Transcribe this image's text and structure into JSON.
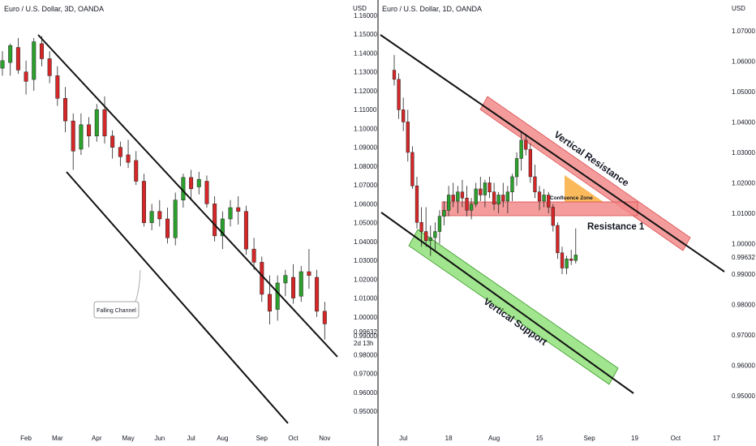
{
  "colors": {
    "up": "#2ca02c",
    "down": "#d62728",
    "line": "#111111",
    "resistance_fill": "#f28b8b",
    "support_fill": "#90e07a",
    "confluence_fill": "#f9b24a",
    "divider": "#333333"
  },
  "chart_data": [
    {
      "type": "candlestick",
      "title": "Euro / U.S. Dollar, 3D, OANDA",
      "price_axis_label": "USD",
      "yticks": [
        "1.16000",
        "1.15000",
        "1.14000",
        "1.13000",
        "1.12000",
        "1.11000",
        "1.10000",
        "1.09000",
        "1.08000",
        "1.07000",
        "1.06000",
        "1.05000",
        "1.04000",
        "1.03000",
        "1.02000",
        "1.01000",
        "1.00000",
        "0.99000",
        "0.98000",
        "0.97000",
        "0.96000",
        "0.95000"
      ],
      "ytick_values": [
        1.16,
        1.15,
        1.14,
        1.13,
        1.12,
        1.11,
        1.1,
        1.09,
        1.08,
        1.07,
        1.06,
        1.05,
        1.04,
        1.03,
        1.02,
        1.01,
        1.0,
        0.99,
        0.98,
        0.97,
        0.96,
        0.95
      ],
      "ylim": [
        0.95,
        1.16
      ],
      "xticks": [
        "Feb",
        "Mar",
        "Apr",
        "May",
        "Jun",
        "Jul",
        "Aug",
        "Sep",
        "Oct",
        "Nov"
      ],
      "xtick_index": [
        3,
        7,
        12,
        16,
        20,
        24,
        28,
        33,
        37,
        41
      ],
      "xlim": [
        0,
        42
      ],
      "last_price": "0.99632",
      "countdown": "2d 13h",
      "candles": [
        {
          "i": 0,
          "o": 1.132,
          "h": 1.141,
          "l": 1.128,
          "c": 1.136
        },
        {
          "i": 1,
          "o": 1.135,
          "h": 1.145,
          "l": 1.128,
          "c": 1.144
        },
        {
          "i": 2,
          "o": 1.143,
          "h": 1.148,
          "l": 1.129,
          "c": 1.131
        },
        {
          "i": 3,
          "o": 1.13,
          "h": 1.136,
          "l": 1.118,
          "c": 1.125
        },
        {
          "i": 4,
          "o": 1.126,
          "h": 1.148,
          "l": 1.12,
          "c": 1.146
        },
        {
          "i": 5,
          "o": 1.145,
          "h": 1.149,
          "l": 1.133,
          "c": 1.137
        },
        {
          "i": 6,
          "o": 1.137,
          "h": 1.141,
          "l": 1.124,
          "c": 1.128
        },
        {
          "i": 7,
          "o": 1.128,
          "h": 1.133,
          "l": 1.112,
          "c": 1.116
        },
        {
          "i": 8,
          "o": 1.116,
          "h": 1.122,
          "l": 1.098,
          "c": 1.104
        },
        {
          "i": 9,
          "o": 1.104,
          "h": 1.108,
          "l": 1.078,
          "c": 1.088
        },
        {
          "i": 10,
          "o": 1.089,
          "h": 1.108,
          "l": 1.086,
          "c": 1.102
        },
        {
          "i": 11,
          "o": 1.102,
          "h": 1.106,
          "l": 1.09,
          "c": 1.096
        },
        {
          "i": 12,
          "o": 1.096,
          "h": 1.113,
          "l": 1.093,
          "c": 1.11
        },
        {
          "i": 13,
          "o": 1.11,
          "h": 1.117,
          "l": 1.092,
          "c": 1.096
        },
        {
          "i": 14,
          "o": 1.096,
          "h": 1.099,
          "l": 1.084,
          "c": 1.09
        },
        {
          "i": 15,
          "o": 1.09,
          "h": 1.093,
          "l": 1.08,
          "c": 1.085
        },
        {
          "i": 16,
          "o": 1.086,
          "h": 1.094,
          "l": 1.079,
          "c": 1.082
        },
        {
          "i": 17,
          "o": 1.083,
          "h": 1.088,
          "l": 1.07,
          "c": 1.072
        },
        {
          "i": 18,
          "o": 1.072,
          "h": 1.076,
          "l": 1.048,
          "c": 1.05
        },
        {
          "i": 19,
          "o": 1.05,
          "h": 1.06,
          "l": 1.046,
          "c": 1.056
        },
        {
          "i": 20,
          "o": 1.056,
          "h": 1.062,
          "l": 1.048,
          "c": 1.052
        },
        {
          "i": 21,
          "o": 1.052,
          "h": 1.058,
          "l": 1.039,
          "c": 1.042
        },
        {
          "i": 22,
          "o": 1.042,
          "h": 1.066,
          "l": 1.038,
          "c": 1.062
        },
        {
          "i": 23,
          "o": 1.062,
          "h": 1.076,
          "l": 1.058,
          "c": 1.074
        },
        {
          "i": 24,
          "o": 1.074,
          "h": 1.078,
          "l": 1.062,
          "c": 1.068
        },
        {
          "i": 25,
          "o": 1.069,
          "h": 1.077,
          "l": 1.065,
          "c": 1.073
        },
        {
          "i": 26,
          "o": 1.072,
          "h": 1.075,
          "l": 1.058,
          "c": 1.06
        },
        {
          "i": 27,
          "o": 1.06,
          "h": 1.064,
          "l": 1.04,
          "c": 1.043
        },
        {
          "i": 28,
          "o": 1.043,
          "h": 1.056,
          "l": 1.036,
          "c": 1.052
        },
        {
          "i": 29,
          "o": 1.052,
          "h": 1.062,
          "l": 1.048,
          "c": 1.058
        },
        {
          "i": 30,
          "o": 1.058,
          "h": 1.064,
          "l": 1.049,
          "c": 1.056
        },
        {
          "i": 31,
          "o": 1.056,
          "h": 1.059,
          "l": 1.033,
          "c": 1.036
        },
        {
          "i": 32,
          "o": 1.036,
          "h": 1.042,
          "l": 1.025,
          "c": 1.029
        },
        {
          "i": 33,
          "o": 1.029,
          "h": 1.032,
          "l": 1.008,
          "c": 1.012
        },
        {
          "i": 34,
          "o": 1.012,
          "h": 1.022,
          "l": 0.996,
          "c": 1.003
        },
        {
          "i": 35,
          "o": 1.004,
          "h": 1.022,
          "l": 0.998,
          "c": 1.018
        },
        {
          "i": 36,
          "o": 1.018,
          "h": 1.025,
          "l": 1.011,
          "c": 1.022
        },
        {
          "i": 37,
          "o": 1.021,
          "h": 1.028,
          "l": 1.007,
          "c": 1.01
        },
        {
          "i": 38,
          "o": 1.011,
          "h": 1.027,
          "l": 1.008,
          "c": 1.024
        },
        {
          "i": 39,
          "o": 1.024,
          "h": 1.036,
          "l": 1.015,
          "c": 1.022
        },
        {
          "i": 40,
          "o": 1.021,
          "h": 1.025,
          "l": 1.0,
          "c": 1.003
        },
        {
          "i": 41,
          "o": 1.003,
          "h": 1.008,
          "l": 0.988,
          "c": 0.9963
        }
      ],
      "annotations": {
        "callout_text": "Falling Channel"
      }
    },
    {
      "type": "candlestick",
      "title": "Euro / U.S. Dollar, 1D, OANDA",
      "price_axis_label": "USD",
      "yticks": [
        "1.07000",
        "1.06000",
        "1.05000",
        "1.04000",
        "1.03000",
        "1.02000",
        "1.01000",
        "1.00000",
        "0.99000",
        "0.98000",
        "0.97000",
        "0.96000",
        "0.95000"
      ],
      "ytick_values": [
        1.07,
        1.06,
        1.05,
        1.04,
        1.03,
        1.02,
        1.01,
        1.0,
        0.99,
        0.98,
        0.97,
        0.96,
        0.95
      ],
      "ylim": [
        0.945,
        1.075
      ],
      "xticks": [
        "Jul",
        "18",
        "Aug",
        "15",
        "Sep",
        "19",
        "Oct",
        "17"
      ],
      "xtick_index": [
        2,
        12,
        22,
        32,
        43,
        53,
        62,
        71
      ],
      "xlim": [
        0,
        74
      ],
      "last_price": "0.99632",
      "annotations": {
        "vertical_resistance_label": "Vertical Resistance",
        "vertical_support_label": "Vertical Support",
        "resistance1_label": "Resistance 1",
        "confluence_label": "Confluence Zone",
        "resistance1_range": [
          1.0055,
          1.008
        ]
      },
      "candles": [
        {
          "i": 0,
          "o": 1.057,
          "h": 1.062,
          "l": 1.052,
          "c": 1.054
        },
        {
          "i": 1,
          "o": 1.054,
          "h": 1.056,
          "l": 1.041,
          "c": 1.044
        },
        {
          "i": 2,
          "o": 1.044,
          "h": 1.048,
          "l": 1.037,
          "c": 1.04
        },
        {
          "i": 3,
          "o": 1.04,
          "h": 1.044,
          "l": 1.027,
          "c": 1.03
        },
        {
          "i": 4,
          "o": 1.03,
          "h": 1.032,
          "l": 1.018,
          "c": 1.019
        },
        {
          "i": 5,
          "o": 1.019,
          "h": 1.022,
          "l": 1.005,
          "c": 1.007
        },
        {
          "i": 6,
          "o": 1.007,
          "h": 1.012,
          "l": 0.999,
          "c": 1.004
        },
        {
          "i": 7,
          "o": 1.004,
          "h": 1.012,
          "l": 0.999,
          "c": 1.001
        },
        {
          "i": 8,
          "o": 1.001,
          "h": 1.006,
          "l": 0.996,
          "c": 1.002
        },
        {
          "i": 9,
          "o": 1.002,
          "h": 1.007,
          "l": 0.9975,
          "c": 1.004
        },
        {
          "i": 10,
          "o": 1.004,
          "h": 1.011,
          "l": 1.0,
          "c": 1.009
        },
        {
          "i": 11,
          "o": 1.009,
          "h": 1.014,
          "l": 1.006,
          "c": 1.011
        },
        {
          "i": 12,
          "o": 1.011,
          "h": 1.019,
          "l": 1.009,
          "c": 1.016
        },
        {
          "i": 13,
          "o": 1.016,
          "h": 1.02,
          "l": 1.012,
          "c": 1.014
        },
        {
          "i": 14,
          "o": 1.014,
          "h": 1.019,
          "l": 1.01,
          "c": 1.017
        },
        {
          "i": 15,
          "o": 1.017,
          "h": 1.021,
          "l": 1.012,
          "c": 1.015
        },
        {
          "i": 16,
          "o": 1.015,
          "h": 1.019,
          "l": 1.009,
          "c": 1.011
        },
        {
          "i": 17,
          "o": 1.011,
          "h": 1.015,
          "l": 1.008,
          "c": 1.013
        },
        {
          "i": 18,
          "o": 1.013,
          "h": 1.02,
          "l": 1.012,
          "c": 1.018
        },
        {
          "i": 19,
          "o": 1.018,
          "h": 1.022,
          "l": 1.014,
          "c": 1.016
        },
        {
          "i": 20,
          "o": 1.016,
          "h": 1.021,
          "l": 1.012,
          "c": 1.02
        },
        {
          "i": 21,
          "o": 1.02,
          "h": 1.022,
          "l": 1.015,
          "c": 1.017
        },
        {
          "i": 22,
          "o": 1.017,
          "h": 1.02,
          "l": 1.011,
          "c": 1.013
        },
        {
          "i": 23,
          "o": 1.013,
          "h": 1.017,
          "l": 1.01,
          "c": 1.016
        },
        {
          "i": 24,
          "o": 1.016,
          "h": 1.02,
          "l": 1.012,
          "c": 1.014
        },
        {
          "i": 25,
          "o": 1.014,
          "h": 1.019,
          "l": 1.01,
          "c": 1.017
        },
        {
          "i": 26,
          "o": 1.017,
          "h": 1.023,
          "l": 1.014,
          "c": 1.022
        },
        {
          "i": 27,
          "o": 1.022,
          "h": 1.03,
          "l": 1.019,
          "c": 1.028
        },
        {
          "i": 28,
          "o": 1.028,
          "h": 1.037,
          "l": 1.024,
          "c": 1.034
        },
        {
          "i": 29,
          "o": 1.034,
          "h": 1.036,
          "l": 1.029,
          "c": 1.031
        },
        {
          "i": 30,
          "o": 1.031,
          "h": 1.033,
          "l": 1.02,
          "c": 1.022
        },
        {
          "i": 31,
          "o": 1.022,
          "h": 1.026,
          "l": 1.015,
          "c": 1.017
        },
        {
          "i": 32,
          "o": 1.017,
          "h": 1.019,
          "l": 1.011,
          "c": 1.014
        },
        {
          "i": 33,
          "o": 1.014,
          "h": 1.018,
          "l": 1.012,
          "c": 1.016
        },
        {
          "i": 34,
          "o": 1.016,
          "h": 1.017,
          "l": 1.01,
          "c": 1.012
        },
        {
          "i": 35,
          "o": 1.012,
          "h": 1.013,
          "l": 1.004,
          "c": 1.006
        },
        {
          "i": 36,
          "o": 1.006,
          "h": 1.007,
          "l": 0.995,
          "c": 0.997
        },
        {
          "i": 37,
          "o": 0.997,
          "h": 0.999,
          "l": 0.99,
          "c": 0.992
        },
        {
          "i": 38,
          "o": 0.992,
          "h": 0.996,
          "l": 0.99,
          "c": 0.995
        },
        {
          "i": 39,
          "o": 0.995,
          "h": 0.998,
          "l": 0.993,
          "c": 0.9945
        },
        {
          "i": 40,
          "o": 0.9945,
          "h": 1.005,
          "l": 0.9935,
          "c": 0.9963
        }
      ]
    }
  ]
}
